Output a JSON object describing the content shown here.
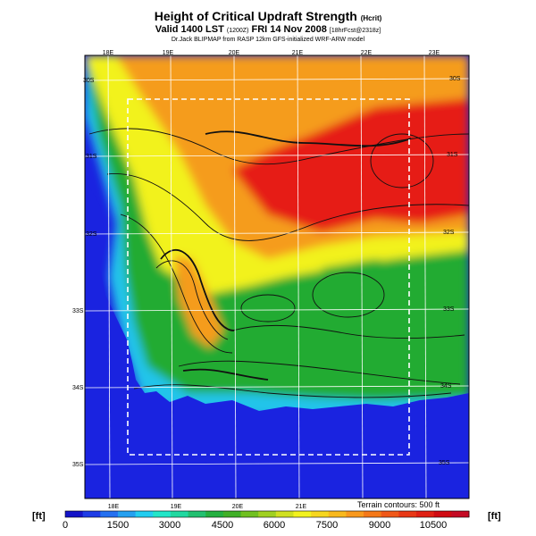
{
  "title": {
    "main": "Height of Critical Updraft Strength",
    "main_suffix": "(Hcrit)",
    "valid": "Valid 1400 LST",
    "valid_code": "(1200Z)",
    "valid_date": "FRI 14 Nov 2008",
    "forecast": "[18hrFcst@2318z]",
    "credit": "Dr.Jack BLIPMAP from RASP 12km GFS-initialized WRF-ARW model"
  },
  "map": {
    "lon_labels": [
      "18E",
      "19E",
      "20E",
      "21E",
      "22E",
      "23E"
    ],
    "lat_labels": [
      "30S",
      "31S",
      "32S",
      "33S",
      "34S",
      "35S"
    ],
    "terrain_note": "Terrain contours: 500 ft",
    "colors": {
      "ocean": "#1a23e0",
      "coast": "#21c4ea",
      "green": "#22ab32",
      "yellow": "#f2f21e",
      "orange": "#f59c1d",
      "red": "#e61f16"
    }
  },
  "colorbar": {
    "unit_left": "[ft]",
    "unit_right": "[ft]",
    "tick_labels": [
      "0",
      "1500",
      "3000",
      "4500",
      "6000",
      "7500",
      "9000",
      "10500"
    ],
    "colors": [
      "#1414c8",
      "#1e3ce6",
      "#2470f0",
      "#24a0f0",
      "#22cdf0",
      "#22e6c8",
      "#20d8a0",
      "#22c070",
      "#24b040",
      "#40b028",
      "#70c020",
      "#a0d020",
      "#d0e020",
      "#f2f21e",
      "#f6d61e",
      "#f8b81c",
      "#f8981c",
      "#f47818",
      "#f05818",
      "#e83816",
      "#e02014",
      "#d00a12",
      "#c40a24"
    ]
  }
}
